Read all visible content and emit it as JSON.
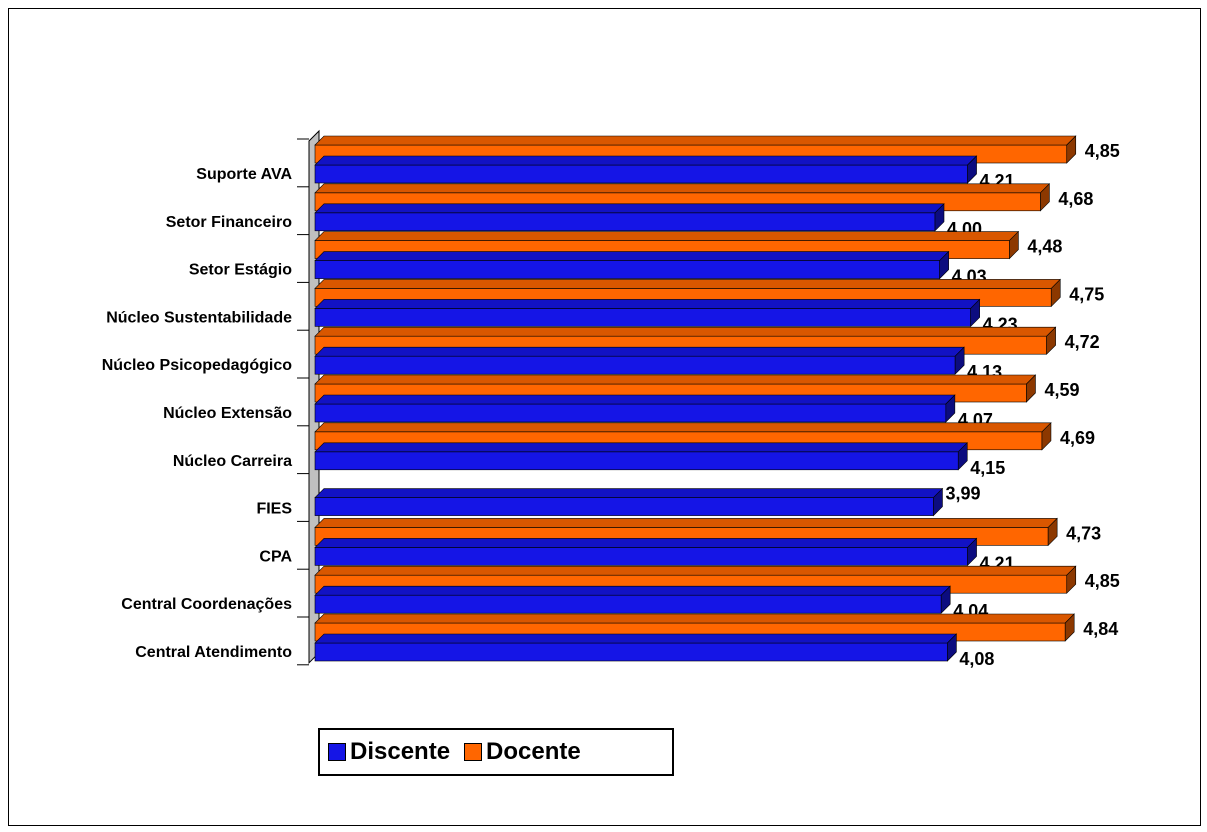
{
  "chart_data": {
    "type": "bar",
    "orientation": "horizontal",
    "style": "3d",
    "categories": [
      "Suporte AVA",
      "Setor Financeiro",
      "Setor Estágio",
      "Núcleo Sustentabilidade",
      "Núcleo Psicopedagógico",
      "Núcleo Extensão",
      "Núcleo Carreira",
      "FIES",
      "CPA",
      "Central Coordenações",
      "Central Atendimento"
    ],
    "series": [
      {
        "name": "Discente",
        "color": "#1515e6",
        "values": [
          4.21,
          4.0,
          4.03,
          4.23,
          4.13,
          4.07,
          4.15,
          3.99,
          4.21,
          4.04,
          4.08
        ],
        "labels": [
          "4,21",
          "4,00",
          "4,03",
          "4,23",
          "4,13",
          "4,07",
          "4,15",
          "3,99",
          "4,21",
          "4,04",
          "4,08"
        ]
      },
      {
        "name": "Docente",
        "color": "#ff6600",
        "values": [
          4.85,
          4.68,
          4.48,
          4.75,
          4.72,
          4.59,
          4.69,
          null,
          4.73,
          4.85,
          4.84
        ],
        "labels": [
          "4,85",
          "4,68",
          "4,48",
          "4,75",
          "4,72",
          "4,59",
          "4,69",
          "",
          "4,73",
          "4,85",
          "4,84"
        ]
      }
    ],
    "xlim": [
      0,
      5
    ],
    "grid": false,
    "legend_position": "bottom"
  }
}
